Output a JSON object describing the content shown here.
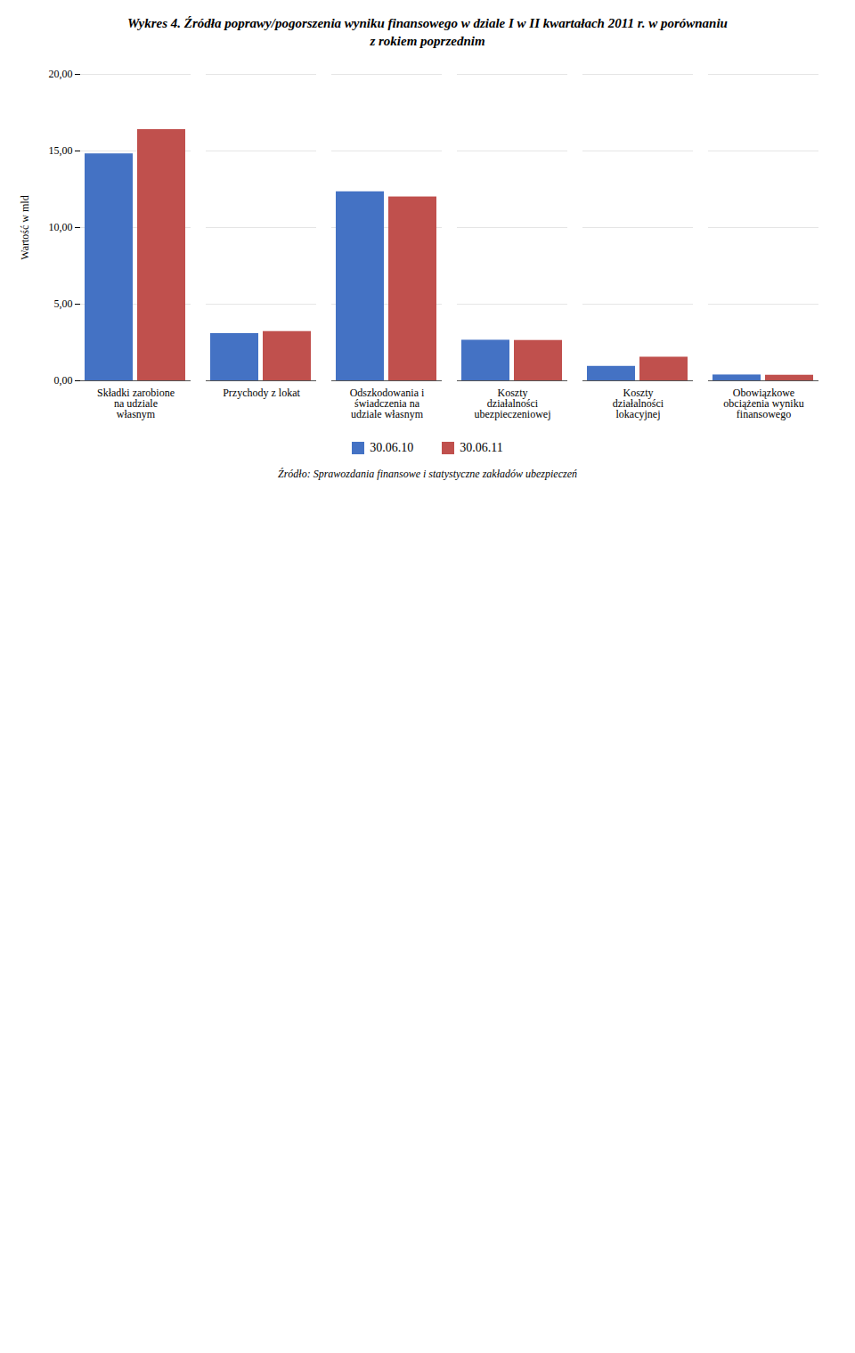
{
  "chart_data": {
    "type": "bar",
    "title": "Wykres 4. Źródła poprawy/pogorszenia wyniku finansowego w dziale I w II kwartałach  2011 r. w porównaniu\nz rokiem poprzednim",
    "categories": [
      "Składki zarobione\nna udziale\nwłasnym",
      "Przychody z lokat",
      "Odszkodowania i\nświadczenia na\nudziale własnym",
      "Koszty\ndziałalności\nubezpieczeniowej",
      "Koszty\ndziałalności\nlokacyjnej",
      "Obowiązkowe\nobciążenia wyniku\nfinansowego"
    ],
    "series": [
      {
        "name": "30.06.10",
        "color": "#4472C4",
        "values": [
          14.813,
          3.082,
          12.337,
          2.649,
          0.943,
          0.382
        ]
      },
      {
        "name": "30.06.11",
        "color": "#C0504D",
        "values": [
          16.397,
          3.214,
          12.002,
          2.633,
          1.542,
          0.364
        ]
      }
    ],
    "y_label": "Wartość w mld",
    "ylim": [
      0,
      20
    ],
    "yticks": [
      {
        "value": 0.0,
        "label": "0,00"
      },
      {
        "value": 5.0,
        "label": "5,00"
      },
      {
        "value": 10.0,
        "label": "10,00"
      },
      {
        "value": 15.0,
        "label": "15,00"
      },
      {
        "value": 20.0,
        "label": "20,00"
      }
    ],
    "grid": true,
    "legend": "bottom",
    "annotations": [
      "Źródło: Sprawozdania finansowe i statystyczne zakładów ubezpieczeń"
    ]
  }
}
